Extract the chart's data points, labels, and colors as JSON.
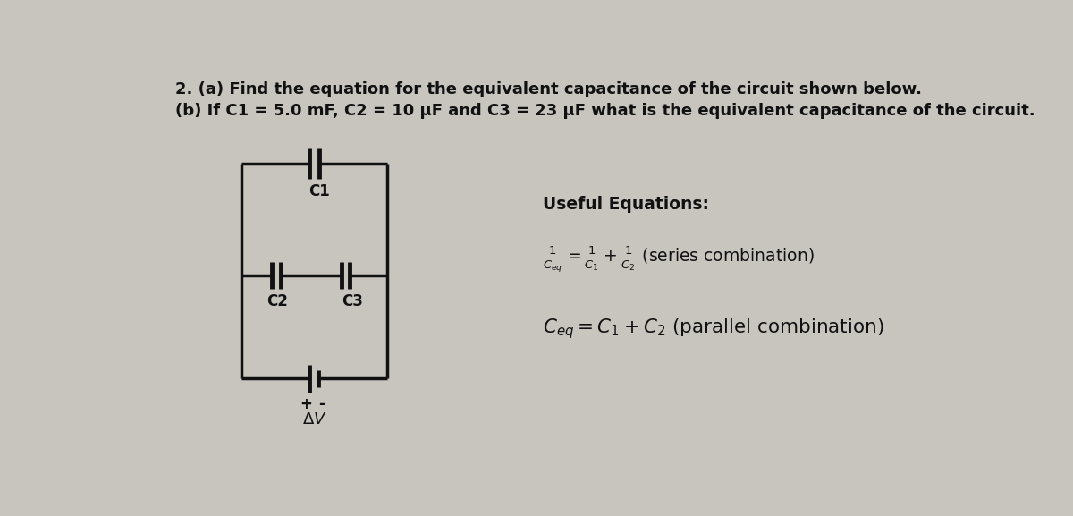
{
  "bg_color": "#c8c5bf",
  "title_line1": "2. (a) Find the equation for the equivalent capacitance of the circuit shown below.",
  "title_line2": "(b) If C1 = 5.0 mF, C2 = 10 μF and C3 = 23 μF what is the equivalent capacitance of the circuit.",
  "title_fontsize": 13.0,
  "text_color": "#111111",
  "useful_eq_title": "Useful Equations:",
  "circuit_lw": 2.5,
  "eq_fontsize": 13.5,
  "label_fontsize": 12.0
}
